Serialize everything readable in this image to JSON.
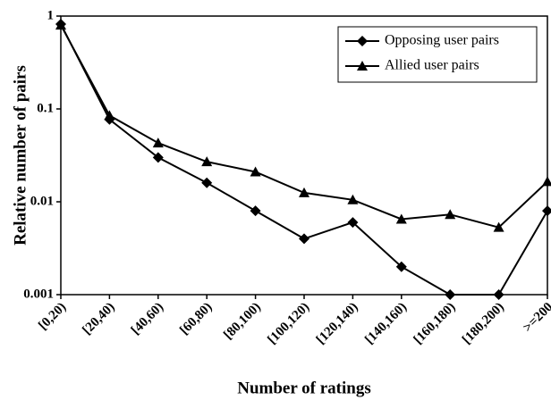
{
  "chart_data": {
    "type": "line",
    "x_label": "Number of ratings",
    "y_label": "Relative number of pairs",
    "categories": [
      "[0,20)",
      "[20,40)",
      "[40,60)",
      "[60,80)",
      "[80,100)",
      "[100,120)",
      "[120,140)",
      "[140,160)",
      "[160,180)",
      "[180,200)",
      ">=200"
    ],
    "series": [
      {
        "name": "Opposing user pairs",
        "color": "#000000",
        "marker": "diamond",
        "values": [
          0.82,
          0.077,
          0.03,
          0.016,
          0.008,
          0.004,
          0.006,
          0.002,
          0.001,
          0.001,
          0.008
        ]
      },
      {
        "name": "Allied user pairs",
        "color": "#000000",
        "marker": "triangle",
        "values": [
          0.8,
          0.085,
          0.043,
          0.027,
          0.021,
          0.0125,
          0.0105,
          0.0065,
          0.0073,
          0.0053,
          0.0165
        ]
      }
    ],
    "ylim": [
      0.001,
      1
    ],
    "yticks": [
      1,
      0.1,
      0.01,
      0.001
    ],
    "log_y": true,
    "grid": false,
    "legend": "top-right"
  }
}
